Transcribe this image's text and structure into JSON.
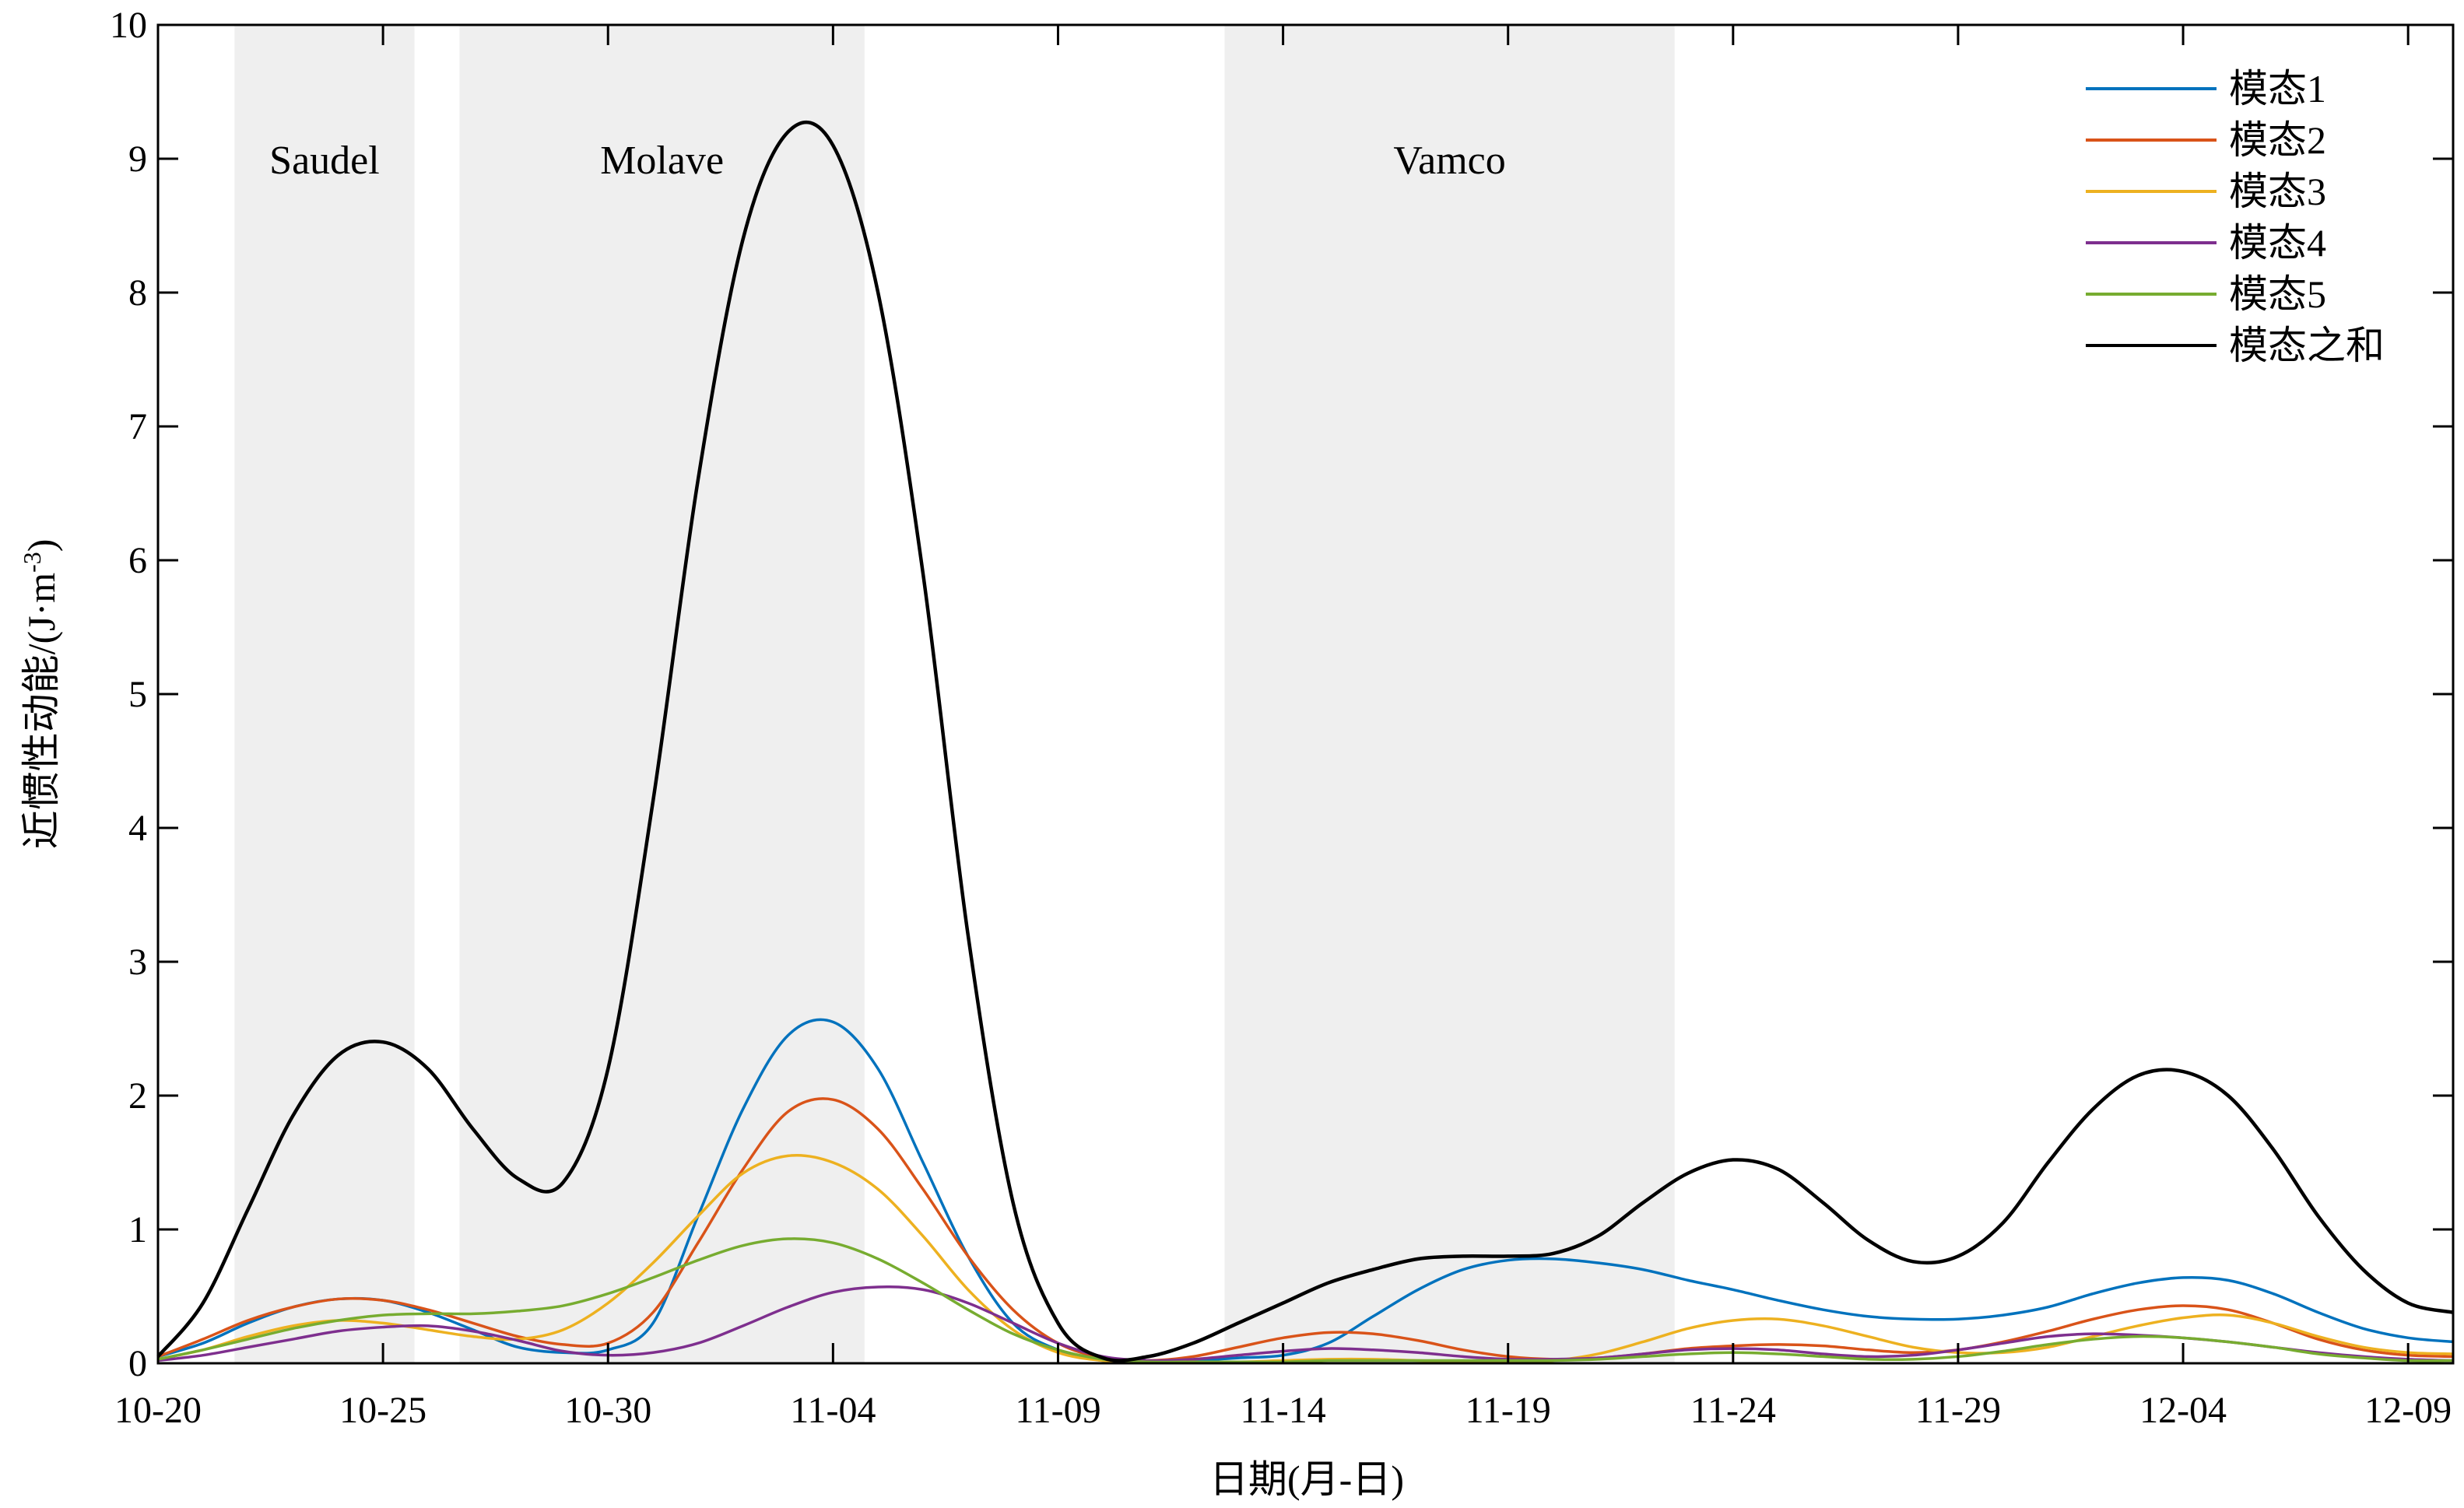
{
  "chart_data": {
    "type": "line",
    "xlabel": "日期(月-日)",
    "ylabel": "近惯性动能/(J·m",
    "ylabel_sup": "-3",
    "ylabel_close": ")",
    "ylim": [
      0,
      10
    ],
    "yticks": [
      "0",
      "1",
      "2",
      "3",
      "4",
      "5",
      "6",
      "7",
      "8",
      "9",
      "10"
    ],
    "xlim": [
      0,
      51
    ],
    "x_tick_positions": [
      0,
      5,
      10,
      15,
      20,
      25,
      30,
      35,
      40,
      45,
      50
    ],
    "x_tick_labels": [
      "10-20",
      "10-25",
      "10-30",
      "11-04",
      "11-09",
      "11-14",
      "11-19",
      "11-24",
      "11-29",
      "12-04",
      "12-09"
    ],
    "grid": false,
    "legend_position": "top-right",
    "storm_periods": [
      {
        "name": "Saudel",
        "start": 1.7,
        "end": 5.7
      },
      {
        "name": "Molave",
        "start": 6.7,
        "end": 15.7
      },
      {
        "name": "Vamco",
        "start": 23.7,
        "end": 33.7
      }
    ],
    "x": [
      0,
      1,
      2,
      3,
      4,
      5,
      6,
      7,
      8,
      9,
      10,
      11,
      12,
      13,
      14,
      15,
      16,
      17,
      18,
      19,
      20,
      21,
      22,
      23,
      24,
      25,
      26,
      27,
      28,
      29,
      30,
      31,
      32,
      33,
      34,
      35,
      36,
      37,
      38,
      39,
      40,
      41,
      42,
      43,
      44,
      45,
      46,
      47,
      48,
      49,
      50,
      51
    ],
    "series": [
      {
        "name": "模态1",
        "color": "#0072BD",
        "values": [
          0.05,
          0.15,
          0.3,
          0.42,
          0.48,
          0.47,
          0.38,
          0.25,
          0.12,
          0.08,
          0.1,
          0.3,
          1.1,
          1.9,
          2.45,
          2.55,
          2.2,
          1.5,
          0.8,
          0.3,
          0.1,
          0.02,
          0.01,
          0.02,
          0.04,
          0.06,
          0.15,
          0.35,
          0.55,
          0.7,
          0.77,
          0.78,
          0.75,
          0.7,
          0.62,
          0.55,
          0.47,
          0.4,
          0.35,
          0.33,
          0.33,
          0.36,
          0.42,
          0.52,
          0.6,
          0.64,
          0.62,
          0.52,
          0.38,
          0.26,
          0.19,
          0.16
        ]
      },
      {
        "name": "模态2",
        "color": "#D95319",
        "values": [
          0.05,
          0.18,
          0.32,
          0.42,
          0.48,
          0.47,
          0.4,
          0.3,
          0.2,
          0.14,
          0.15,
          0.38,
          0.9,
          1.45,
          1.88,
          1.97,
          1.75,
          1.3,
          0.8,
          0.4,
          0.15,
          0.04,
          0.02,
          0.05,
          0.12,
          0.19,
          0.23,
          0.22,
          0.17,
          0.1,
          0.05,
          0.03,
          0.04,
          0.07,
          0.11,
          0.13,
          0.14,
          0.13,
          0.1,
          0.08,
          0.1,
          0.16,
          0.24,
          0.33,
          0.4,
          0.43,
          0.4,
          0.3,
          0.18,
          0.1,
          0.06,
          0.05
        ]
      },
      {
        "name": "模态3",
        "color": "#EDB120",
        "values": [
          0.03,
          0.1,
          0.2,
          0.28,
          0.32,
          0.3,
          0.25,
          0.2,
          0.18,
          0.25,
          0.45,
          0.75,
          1.1,
          1.42,
          1.55,
          1.5,
          1.3,
          0.95,
          0.55,
          0.25,
          0.08,
          0.02,
          0.01,
          0.01,
          0.01,
          0.02,
          0.03,
          0.03,
          0.02,
          0.01,
          0.01,
          0.02,
          0.07,
          0.16,
          0.26,
          0.32,
          0.33,
          0.28,
          0.2,
          0.12,
          0.08,
          0.08,
          0.12,
          0.2,
          0.28,
          0.34,
          0.36,
          0.3,
          0.2,
          0.12,
          0.08,
          0.07
        ]
      },
      {
        "name": "模态4",
        "color": "#7E2F8E",
        "values": [
          0.02,
          0.06,
          0.12,
          0.18,
          0.24,
          0.27,
          0.28,
          0.24,
          0.17,
          0.09,
          0.06,
          0.08,
          0.15,
          0.28,
          0.42,
          0.53,
          0.57,
          0.55,
          0.45,
          0.3,
          0.15,
          0.05,
          0.02,
          0.03,
          0.06,
          0.09,
          0.11,
          0.1,
          0.08,
          0.05,
          0.03,
          0.03,
          0.04,
          0.07,
          0.1,
          0.11,
          0.1,
          0.07,
          0.05,
          0.06,
          0.1,
          0.15,
          0.2,
          0.22,
          0.21,
          0.19,
          0.16,
          0.12,
          0.08,
          0.05,
          0.03,
          0.02
        ]
      },
      {
        "name": "模态5",
        "color": "#77AC30",
        "values": [
          0.03,
          0.1,
          0.18,
          0.26,
          0.32,
          0.36,
          0.37,
          0.37,
          0.39,
          0.43,
          0.52,
          0.64,
          0.77,
          0.88,
          0.93,
          0.9,
          0.78,
          0.6,
          0.4,
          0.22,
          0.1,
          0.03,
          0.01,
          0.01,
          0.01,
          0.01,
          0.02,
          0.02,
          0.02,
          0.02,
          0.02,
          0.02,
          0.03,
          0.05,
          0.07,
          0.08,
          0.07,
          0.05,
          0.03,
          0.03,
          0.05,
          0.09,
          0.14,
          0.18,
          0.2,
          0.19,
          0.16,
          0.12,
          0.07,
          0.04,
          0.02,
          0.02
        ]
      },
      {
        "name": "模态之和",
        "color": "#000000",
        "values": [
          0.05,
          0.45,
          1.15,
          1.85,
          2.3,
          2.4,
          2.2,
          1.75,
          1.38,
          1.35,
          2.2,
          4.2,
          6.6,
          8.4,
          9.2,
          9.1,
          8.0,
          5.9,
          3.2,
          1.2,
          0.3,
          0.04,
          0.05,
          0.15,
          0.3,
          0.45,
          0.6,
          0.7,
          0.78,
          0.8,
          0.8,
          0.82,
          0.95,
          1.2,
          1.42,
          1.52,
          1.45,
          1.2,
          0.92,
          0.76,
          0.8,
          1.05,
          1.5,
          1.9,
          2.15,
          2.18,
          2.0,
          1.6,
          1.1,
          0.7,
          0.45,
          0.38
        ]
      }
    ]
  }
}
